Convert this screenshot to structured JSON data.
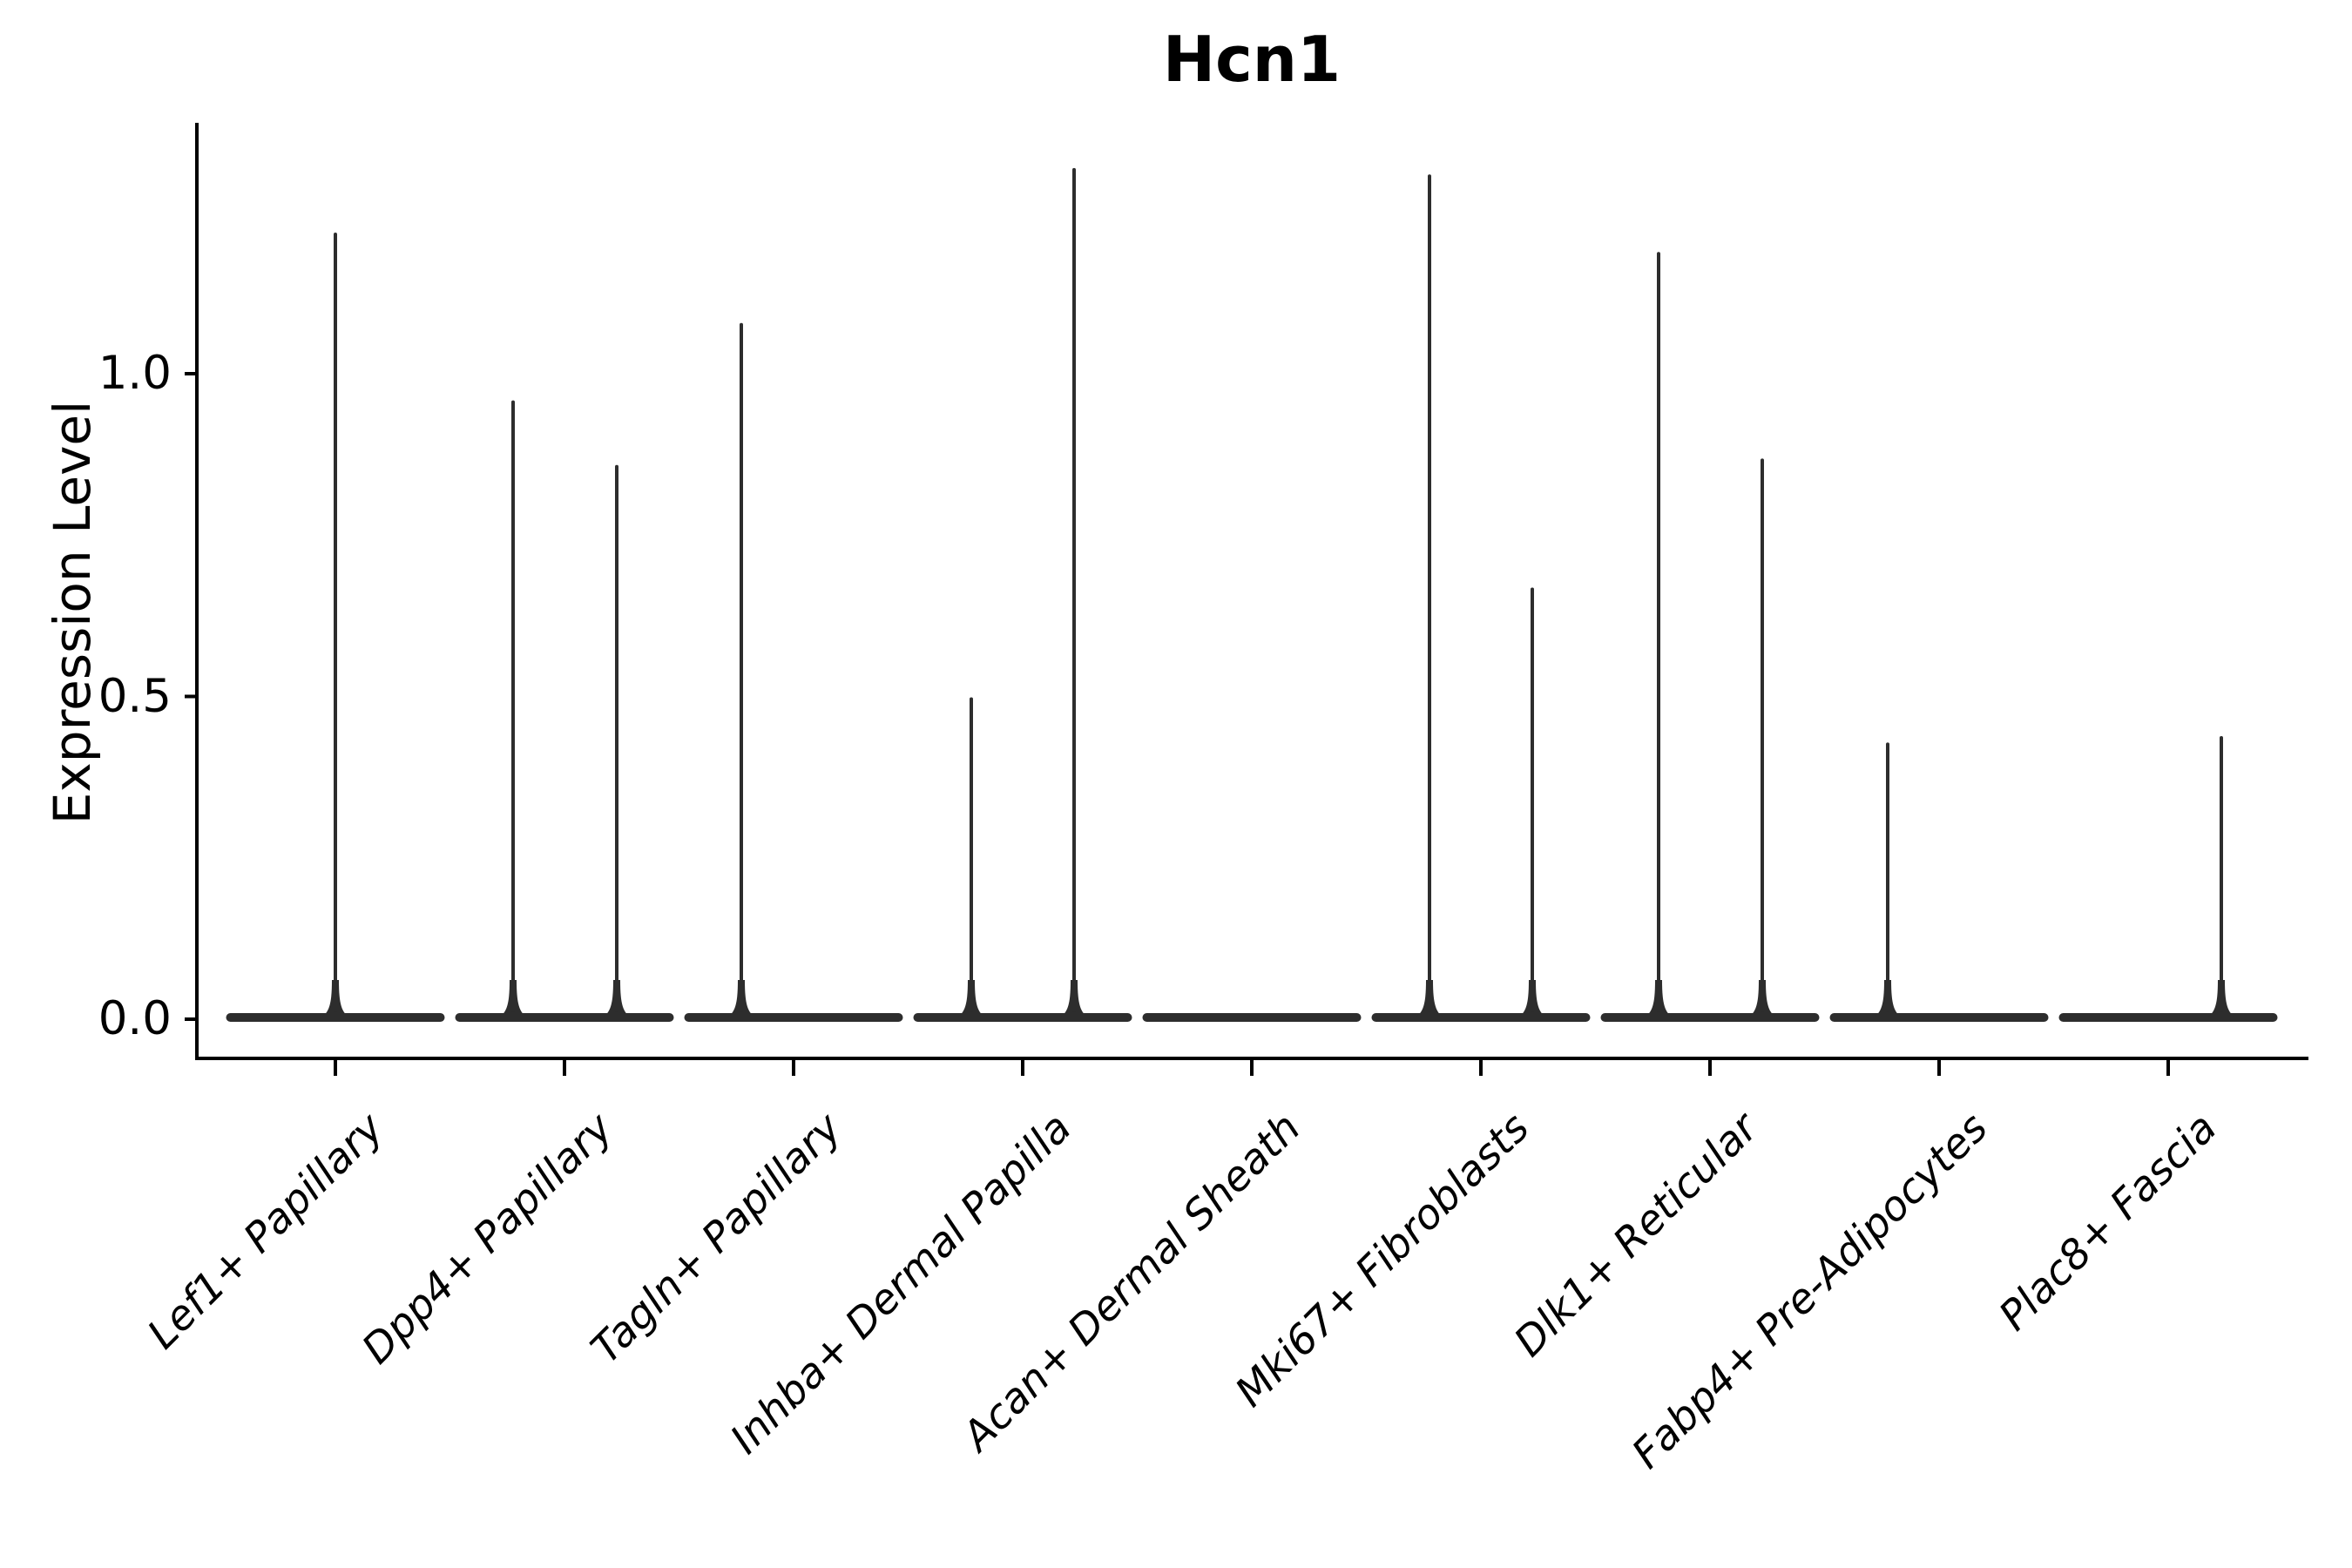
{
  "figure": {
    "background_color": "#ffffff",
    "axis_color": "#000000",
    "violin_color": "#2d2d2d",
    "text_color": "#000000"
  },
  "chart_data": {
    "type": "violin",
    "title": "Hcn1",
    "xlabel": "",
    "ylabel": "Expression Level",
    "ylim": [
      -0.06,
      1.39
    ],
    "grid": false,
    "legend_position": "none",
    "yticks": [
      {
        "value": 0.0,
        "label": "0.0"
      },
      {
        "value": 0.5,
        "label": "0.5"
      },
      {
        "value": 1.0,
        "label": "1.0"
      }
    ],
    "categories": [
      "Lef1+ Papillary",
      "Dpp4+ Papillary",
      "Tagln+ Papillary",
      "Inhba+ Dermal Papilla",
      "Acan+ Dermal Sheath",
      "Mki67+ Fibroblasts",
      "Dlk1+ Reticular",
      "Fabp4+ Pre-Adipocytes",
      "Plac8+ Fascia"
    ],
    "violins": [
      {
        "category": "Lef1+ Papillary",
        "base_value": 0.0,
        "spikes": [
          {
            "dx": 0,
            "value": 1.22
          }
        ]
      },
      {
        "category": "Dpp4+ Papillary",
        "base_value": 0.0,
        "spikes": [
          {
            "dx": -59,
            "value": 0.96
          },
          {
            "dx": 60,
            "value": 0.86
          }
        ]
      },
      {
        "category": "Tagln+ Papillary",
        "base_value": 0.0,
        "spikes": [
          {
            "dx": -60,
            "value": 1.08
          }
        ]
      },
      {
        "category": "Inhba+ Dermal Papilla",
        "base_value": 0.0,
        "spikes": [
          {
            "dx": -59,
            "value": 0.5
          },
          {
            "dx": 59,
            "value": 1.32
          }
        ]
      },
      {
        "category": "Acan+ Dermal Sheath",
        "base_value": 0.0,
        "spikes": []
      },
      {
        "category": "Mki67+ Fibroblasts",
        "base_value": 0.0,
        "spikes": [
          {
            "dx": -59,
            "value": 1.31
          },
          {
            "dx": 59,
            "value": 0.67
          }
        ]
      },
      {
        "category": "Dlk1+ Reticular",
        "base_value": 0.0,
        "spikes": [
          {
            "dx": -59,
            "value": 1.19
          },
          {
            "dx": 60,
            "value": 0.87
          }
        ]
      },
      {
        "category": "Fabp4+ Pre-Adipocytes",
        "base_value": 0.0,
        "spikes": [
          {
            "dx": -59,
            "value": 0.43
          }
        ]
      },
      {
        "category": "Plac8+ Fascia",
        "base_value": 0.0,
        "spikes": [
          {
            "dx": 61,
            "value": 0.44
          }
        ]
      }
    ]
  }
}
